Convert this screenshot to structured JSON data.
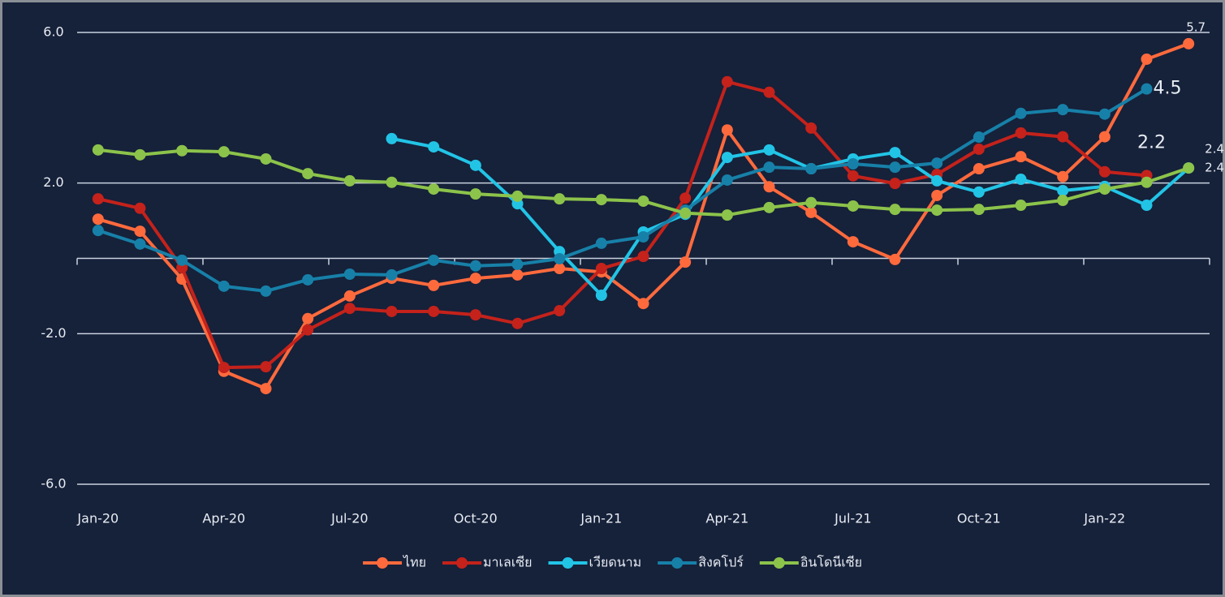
{
  "chart_data": {
    "type": "line",
    "categories": [
      "Jan-20",
      null,
      null,
      "Apr-20",
      null,
      null,
      "Jul-20",
      null,
      null,
      "Oct-20",
      null,
      null,
      "Jan-21",
      null,
      null,
      "Apr-21",
      null,
      null,
      "Jul-21",
      null,
      null,
      "Oct-21",
      null,
      null,
      "Jan-22",
      null,
      null
    ],
    "ylim": [
      -6,
      6
    ],
    "yticks": [
      {
        "value": -6,
        "label": "-6.0"
      },
      {
        "value": -2,
        "label": "-2.0"
      },
      {
        "value": 2,
        "label": "2.0"
      },
      {
        "value": 6,
        "label": "6.0"
      }
    ],
    "grid": true,
    "legend": "bottom",
    "series": [
      {
        "name": "ไทย",
        "color": "#ff6a3d",
        "values": [
          1.04,
          0.72,
          -0.55,
          -3.0,
          -3.46,
          -1.6,
          -1.0,
          -0.53,
          -0.72,
          -0.53,
          -0.44,
          -0.27,
          -0.36,
          -1.2,
          -0.1,
          3.41,
          1.9,
          1.22,
          0.44,
          -0.03,
          1.67,
          2.38,
          2.7,
          2.17,
          3.23,
          5.29,
          5.7
        ],
        "value_labels": [
          null,
          null,
          null,
          null,
          null,
          null,
          null,
          null,
          null,
          null,
          null,
          null,
          null,
          null,
          null,
          null,
          null,
          null,
          null,
          null,
          null,
          null,
          null,
          null,
          null,
          null,
          "5.7"
        ]
      },
      {
        "name": "มาเลเซีย",
        "color": "#c4221b",
        "values": [
          1.58,
          1.33,
          -0.25,
          -2.9,
          -2.88,
          -1.9,
          -1.33,
          -1.41,
          -1.41,
          -1.5,
          -1.73,
          -1.39,
          -0.27,
          0.05,
          1.6,
          4.69,
          4.41,
          3.46,
          2.19,
          1.99,
          2.23,
          2.9,
          3.33,
          3.23,
          2.3,
          2.2,
          null
        ],
        "value_labels": [
          null,
          null,
          null,
          null,
          null,
          null,
          null,
          null,
          null,
          null,
          null,
          null,
          null,
          null,
          null,
          null,
          null,
          null,
          null,
          null,
          null,
          null,
          null,
          null,
          null,
          "2.2",
          null
        ]
      },
      {
        "name": "เวียดนาม",
        "color": "#22c4e6",
        "values": [
          null,
          null,
          null,
          null,
          null,
          null,
          null,
          3.18,
          2.96,
          2.47,
          1.45,
          0.18,
          -0.98,
          0.7,
          1.17,
          2.68,
          2.88,
          2.38,
          2.64,
          2.81,
          2.06,
          1.76,
          2.1,
          1.8,
          1.91,
          1.41,
          2.4
        ],
        "value_labels": [
          null,
          null,
          null,
          null,
          null,
          null,
          null,
          null,
          null,
          null,
          null,
          null,
          null,
          null,
          null,
          null,
          null,
          null,
          null,
          null,
          null,
          null,
          null,
          null,
          null,
          null,
          "2.4"
        ]
      },
      {
        "name": "สิงคโปร์",
        "color": "#1780a8",
        "values": [
          0.74,
          0.38,
          -0.05,
          -0.74,
          -0.87,
          -0.57,
          -0.42,
          -0.44,
          -0.05,
          -0.2,
          -0.16,
          -0.01,
          0.4,
          0.57,
          1.28,
          2.08,
          2.42,
          2.38,
          2.51,
          2.42,
          2.53,
          3.22,
          3.85,
          3.95,
          3.83,
          4.5,
          null
        ],
        "value_labels": [
          null,
          null,
          null,
          null,
          null,
          null,
          null,
          null,
          null,
          null,
          null,
          null,
          null,
          null,
          null,
          null,
          null,
          null,
          null,
          null,
          null,
          null,
          null,
          null,
          null,
          "4.5",
          null
        ]
      },
      {
        "name": "อินโดนีเซีย",
        "color": "#8cc34b",
        "values": [
          2.88,
          2.75,
          2.86,
          2.83,
          2.64,
          2.25,
          2.06,
          2.02,
          1.84,
          1.71,
          1.65,
          1.58,
          1.56,
          1.52,
          1.2,
          1.15,
          1.35,
          1.48,
          1.39,
          1.3,
          1.28,
          1.3,
          1.41,
          1.54,
          1.84,
          2.02,
          2.4
        ],
        "value_labels": [
          null,
          null,
          null,
          null,
          null,
          null,
          null,
          null,
          null,
          null,
          null,
          null,
          null,
          null,
          null,
          null,
          null,
          null,
          null,
          null,
          null,
          null,
          null,
          null,
          null,
          null,
          "2.4"
        ]
      }
    ]
  }
}
